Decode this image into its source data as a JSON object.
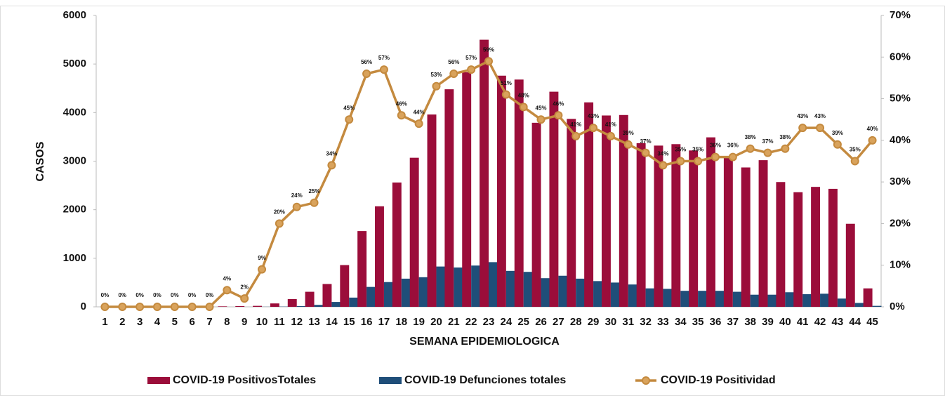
{
  "chart_data": {
    "type": "bar_line",
    "x_label": "SEMANA EPIDEMIOLOGICA",
    "y_label": "CASOS",
    "categories": [
      "1",
      "2",
      "3",
      "4",
      "5",
      "6",
      "7",
      "8",
      "9",
      "10",
      "11",
      "12",
      "13",
      "14",
      "15",
      "16",
      "17",
      "18",
      "19",
      "20",
      "21",
      "22",
      "23",
      "24",
      "25",
      "26",
      "27",
      "28",
      "29",
      "30",
      "31",
      "32",
      "33",
      "34",
      "35",
      "36",
      "37",
      "38",
      "39",
      "40",
      "41",
      "42",
      "43",
      "44",
      "45"
    ],
    "series": [
      {
        "name": "COVID-19 PositivosTotales",
        "color": "#9b0d3a",
        "type": "bar",
        "values": [
          0,
          0,
          0,
          0,
          0,
          0,
          0,
          10,
          15,
          20,
          70,
          160,
          310,
          470,
          860,
          1560,
          2070,
          2560,
          3070,
          3960,
          4480,
          4830,
          5500,
          4760,
          4680,
          3790,
          4430,
          3870,
          4210,
          3940,
          3950,
          3370,
          3320,
          3350,
          3220,
          3490,
          3090,
          2870,
          3020,
          2570,
          2360,
          2470,
          2430,
          1710,
          380
        ]
      },
      {
        "name": "COVID-19 Defunciones totales",
        "color": "#1f4e79",
        "type": "bar",
        "values": [
          0,
          0,
          0,
          0,
          0,
          0,
          0,
          0,
          0,
          2,
          5,
          15,
          40,
          100,
          190,
          410,
          510,
          580,
          610,
          830,
          810,
          850,
          920,
          740,
          720,
          590,
          640,
          580,
          530,
          500,
          460,
          380,
          370,
          330,
          330,
          330,
          310,
          250,
          250,
          300,
          260,
          270,
          170,
          80,
          20
        ]
      },
      {
        "name": "COVID-19 Positividad",
        "color": "#c48a3f",
        "type": "line",
        "axis": "y2",
        "values": [
          0,
          0,
          0,
          0,
          0,
          0,
          0,
          4,
          2,
          9,
          20,
          24,
          25,
          34,
          45,
          56,
          57,
          46,
          44,
          53,
          56,
          57,
          59,
          51,
          48,
          45,
          46,
          41,
          43,
          41,
          39,
          37,
          34,
          35,
          35,
          36,
          36,
          38,
          37,
          38,
          43,
          43,
          39,
          35,
          40
        ],
        "value_labels": [
          "0%",
          "0%",
          "0%",
          "0%",
          "0%",
          "0%",
          "0%",
          "4%",
          "2%",
          "9%",
          "20%",
          "24%",
          "25%",
          "34%",
          "45%",
          "56%",
          "57%",
          "46%",
          "44%",
          "53%",
          "56%",
          "57%",
          "59%",
          "51%",
          "48%",
          "45%",
          "46%",
          "41%",
          "43%",
          "41%",
          "39%",
          "37%",
          "34%",
          "35%",
          "35%",
          "36%",
          "36%",
          "38%",
          "37%",
          "38%",
          "43%",
          "43%",
          "39%",
          "35%",
          "40%"
        ]
      }
    ],
    "ylim": [
      0,
      6000
    ],
    "yticks": [
      0,
      1000,
      2000,
      3000,
      4000,
      5000,
      6000
    ],
    "y2lim": [
      0,
      70
    ],
    "y2ticks": [
      {
        "value": 0,
        "label": "0%"
      },
      {
        "value": 10,
        "label": "10%"
      },
      {
        "value": 20,
        "label": "20%"
      },
      {
        "value": 30,
        "label": "30%"
      },
      {
        "value": 40,
        "label": "40%"
      },
      {
        "value": 50,
        "label": "50%"
      },
      {
        "value": 60,
        "label": "60%"
      },
      {
        "value": 70,
        "label": "70%"
      }
    ],
    "legend": "bottom"
  }
}
